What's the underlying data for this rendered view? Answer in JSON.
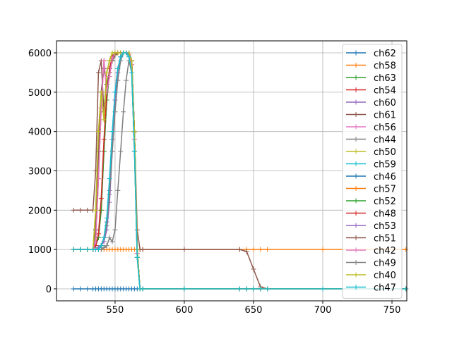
{
  "chart_data": {
    "type": "line",
    "marker": "+",
    "grid": true,
    "legend_placement": "right",
    "xlim": [
      507.7,
      760.7
    ],
    "ylim": [
      -305,
      6305
    ],
    "xticks": [
      550,
      600,
      650,
      700,
      750
    ],
    "yticks": [
      0,
      1000,
      2000,
      3000,
      4000,
      5000,
      6000
    ],
    "x": [
      520,
      525,
      530,
      534,
      536,
      538,
      540,
      542,
      544,
      546,
      548,
      550,
      552,
      554,
      556,
      558,
      560,
      562,
      564,
      566,
      568,
      570,
      600,
      640,
      645,
      650,
      655,
      660,
      700,
      760
    ],
    "series": [
      {
        "name": "ch62",
        "color": "#1f77b4",
        "values": [
          0,
          0,
          0,
          0,
          0,
          0,
          0,
          0,
          0,
          0,
          0,
          0,
          0,
          0,
          0,
          0,
          0,
          0,
          0,
          0,
          0,
          0,
          0,
          0,
          0,
          0,
          0,
          0,
          0,
          0
        ]
      },
      {
        "name": "ch58",
        "color": "#ff7f0e",
        "values": [
          1000,
          1000,
          1000,
          1000,
          1000,
          1000,
          1000,
          1000,
          1000,
          1000,
          1000,
          1000,
          1000,
          1000,
          1000,
          1000,
          1000,
          1000,
          1000,
          1000,
          1000,
          1000,
          1000,
          1000,
          1000,
          1000,
          1000,
          1000,
          1000,
          1000
        ]
      },
      {
        "name": "ch63",
        "color": "#2ca02c",
        "values": [
          1000,
          1000,
          1000,
          1000,
          1500,
          3500,
          5000,
          5600,
          5200,
          5500,
          5800,
          5950,
          6000,
          6000,
          6000,
          6000,
          6000,
          5800,
          4000,
          1000,
          0,
          0,
          0,
          0,
          0,
          0,
          0,
          0,
          0,
          0
        ]
      },
      {
        "name": "ch54",
        "color": "#d62728",
        "values": [
          1000,
          1000,
          1000,
          1000,
          1100,
          1300,
          2000,
          3500,
          4800,
          5500,
          5850,
          5950,
          6000,
          6000,
          6000,
          6000,
          6000,
          5800,
          4000,
          1000,
          0,
          0,
          0,
          0,
          0,
          0,
          0,
          0,
          0,
          0
        ]
      },
      {
        "name": "ch60",
        "color": "#9467bd",
        "values": [
          1000,
          1000,
          1000,
          1000,
          1000,
          1050,
          1100,
          1200,
          1500,
          2200,
          3500,
          4800,
          5500,
          5900,
          6000,
          6000,
          6000,
          5800,
          4000,
          1000,
          0,
          0,
          0,
          0,
          0,
          0,
          0,
          0,
          0,
          0
        ]
      },
      {
        "name": "ch61",
        "color": "#8c564b",
        "values": [
          2000,
          2000,
          2000,
          2000,
          3000,
          5500,
          5800,
          4500,
          5500,
          5800,
          6000,
          6000,
          6000,
          6000,
          6000,
          6000,
          6000,
          5800,
          4000,
          1500,
          1000,
          1000,
          1000,
          1000,
          950,
          500,
          50,
          0,
          0,
          0
        ]
      },
      {
        "name": "ch56",
        "color": "#e377c2",
        "values": [
          1000,
          1000,
          1000,
          1000,
          1200,
          2800,
          4600,
          5800,
          5000,
          5400,
          5850,
          6000,
          6000,
          6000,
          6000,
          6000,
          5950,
          5700,
          3800,
          900,
          0,
          0,
          0,
          0,
          0,
          0,
          0,
          0,
          0,
          0
        ]
      },
      {
        "name": "ch44",
        "color": "#7f7f7f",
        "values": [
          1000,
          1000,
          1000,
          1000,
          1000,
          1000,
          1000,
          1050,
          1100,
          1300,
          1200,
          1500,
          2500,
          3500,
          4500,
          5300,
          5800,
          5500,
          3500,
          800,
          0,
          0,
          0,
          0,
          0,
          0,
          0,
          0,
          0,
          0
        ]
      },
      {
        "name": "ch50",
        "color": "#bcbd22",
        "values": [
          1000,
          1000,
          1000,
          1000,
          2000,
          4000,
          5000,
          4300,
          5500,
          5800,
          6000,
          6000,
          6000,
          6000,
          6000,
          6000,
          6000,
          5800,
          4000,
          1000,
          0,
          0,
          0,
          0,
          0,
          0,
          0,
          0,
          0,
          0
        ]
      },
      {
        "name": "ch59",
        "color": "#17becf",
        "values": [
          1000,
          1000,
          1000,
          1000,
          1000,
          1000,
          1100,
          1300,
          1800,
          2800,
          4000,
          5000,
          5600,
          5900,
          6000,
          6000,
          5900,
          5500,
          3500,
          800,
          0,
          0,
          0,
          0,
          0,
          0,
          0,
          0,
          0,
          0
        ]
      },
      {
        "name": "ch46",
        "color": "#1f77b4",
        "values": [
          1000,
          1000,
          1000,
          1000,
          1500,
          3500,
          5000,
          5600,
          5200,
          5500,
          5800,
          5950,
          6000,
          6000,
          6000,
          6000,
          6000,
          5800,
          4000,
          1000,
          0,
          0,
          0,
          0,
          0,
          0,
          0,
          0,
          0,
          0
        ]
      },
      {
        "name": "ch57",
        "color": "#ff7f0e",
        "values": [
          1000,
          1000,
          1000,
          1000,
          1200,
          2800,
          4600,
          5800,
          5000,
          5400,
          5850,
          6000,
          6000,
          6000,
          6000,
          6000,
          5950,
          5700,
          3800,
          900,
          0,
          0,
          0,
          0,
          0,
          0,
          0,
          0,
          0,
          0
        ]
      },
      {
        "name": "ch52",
        "color": "#2ca02c",
        "values": [
          1000,
          1000,
          1000,
          1000,
          1100,
          1300,
          2000,
          3500,
          4800,
          5500,
          5850,
          5950,
          6000,
          6000,
          6000,
          6000,
          6000,
          5800,
          4000,
          1000,
          0,
          0,
          0,
          0,
          0,
          0,
          0,
          0,
          0,
          0
        ]
      },
      {
        "name": "ch48",
        "color": "#d62728",
        "values": [
          1000,
          1000,
          1000,
          1000,
          1100,
          1400,
          2300,
          3800,
          5000,
          5600,
          5900,
          6000,
          6000,
          6000,
          6000,
          6000,
          6000,
          5800,
          4000,
          1000,
          0,
          0,
          0,
          0,
          0,
          0,
          0,
          0,
          0,
          0
        ]
      },
      {
        "name": "ch53",
        "color": "#9467bd",
        "values": [
          1000,
          1000,
          1000,
          1000,
          1000,
          1050,
          1100,
          1300,
          1700,
          2500,
          3800,
          5000,
          5600,
          5900,
          6000,
          6000,
          6000,
          5800,
          4000,
          1000,
          0,
          0,
          0,
          0,
          0,
          0,
          0,
          0,
          0,
          0
        ]
      },
      {
        "name": "ch51",
        "color": "#8c564b",
        "values": [
          1000,
          1000,
          1000,
          1000,
          1500,
          3500,
          5000,
          5600,
          5200,
          5500,
          5800,
          5950,
          6000,
          6000,
          6000,
          6000,
          6000,
          5800,
          4000,
          1000,
          0,
          0,
          0,
          0,
          0,
          0,
          0,
          0,
          0,
          0
        ]
      },
      {
        "name": "ch42",
        "color": "#e377c2",
        "values": [
          1000,
          1000,
          1000,
          1000,
          1200,
          2800,
          4600,
          5800,
          5000,
          5400,
          5850,
          6000,
          6000,
          6000,
          6000,
          6000,
          5950,
          5700,
          3800,
          900,
          0,
          0,
          0,
          0,
          0,
          0,
          0,
          0,
          0,
          0
        ]
      },
      {
        "name": "ch49",
        "color": "#7f7f7f",
        "values": [
          1000,
          1000,
          1000,
          1000,
          1000,
          1000,
          1100,
          1300,
          1600,
          2400,
          3500,
          4500,
          5300,
          5800,
          6000,
          6000,
          5900,
          5500,
          3500,
          800,
          0,
          0,
          0,
          0,
          0,
          0,
          0,
          0,
          0,
          0
        ]
      },
      {
        "name": "ch40",
        "color": "#bcbd22",
        "values": [
          1000,
          1000,
          1000,
          1000,
          2000,
          4000,
          5000,
          4300,
          5500,
          5800,
          6000,
          6000,
          6000,
          6000,
          6000,
          6000,
          6000,
          5800,
          4000,
          1000,
          0,
          0,
          0,
          0,
          0,
          0,
          0,
          0,
          0,
          0
        ]
      },
      {
        "name": "ch47",
        "color": "#17becf",
        "values": [
          1000,
          1000,
          1000,
          1000,
          1000,
          1000,
          1100,
          1300,
          1800,
          2800,
          4000,
          5000,
          5600,
          5900,
          6000,
          6000,
          5900,
          5500,
          3500,
          800,
          0,
          0,
          0,
          0,
          0,
          0,
          0,
          0,
          0,
          0
        ]
      }
    ]
  }
}
